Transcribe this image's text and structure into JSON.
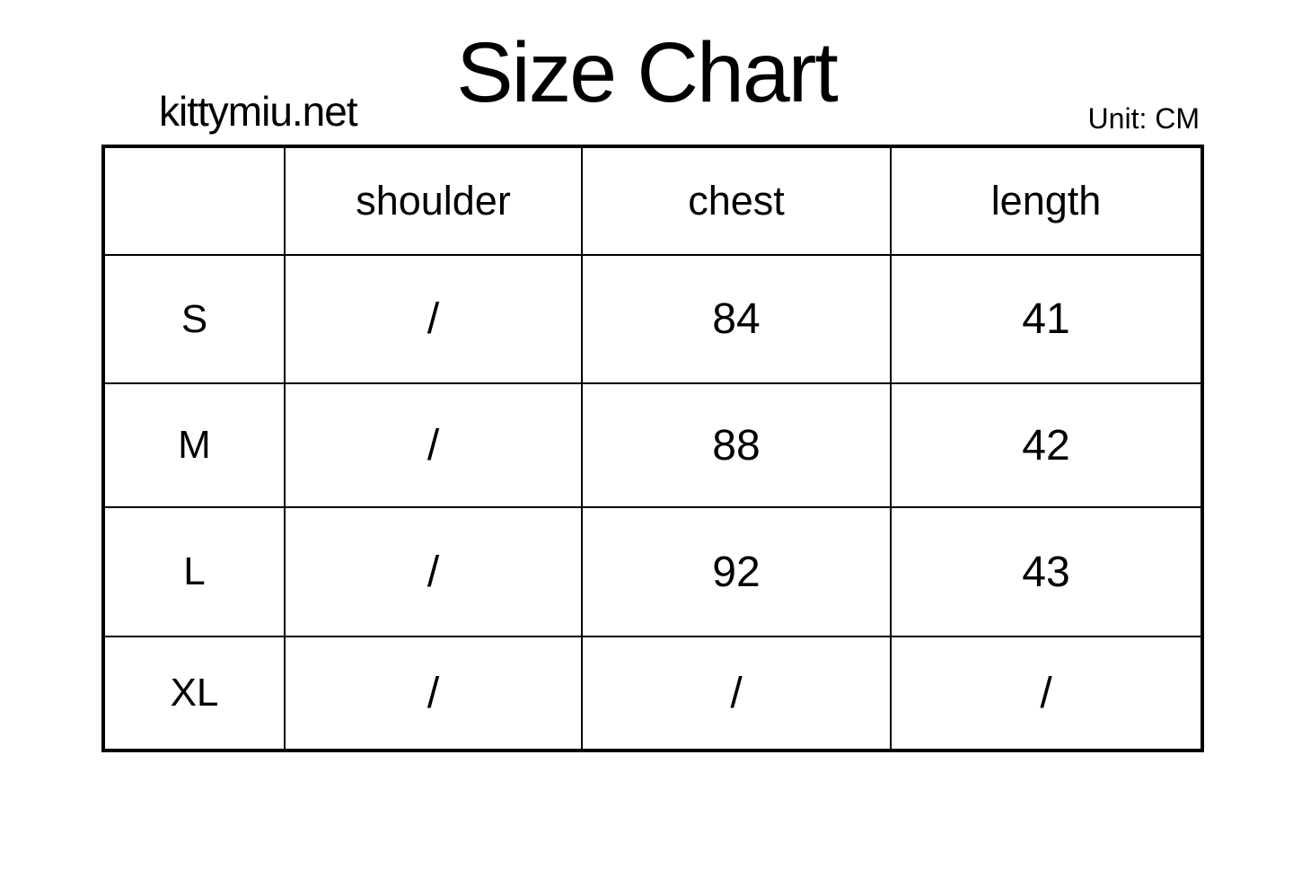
{
  "header": {
    "title": "Size Chart",
    "site": "kittymiu.net",
    "unit": "Unit: CM"
  },
  "colors": {
    "background": "#ffffff",
    "text": "#000000",
    "border": "#000000"
  },
  "chart_data": {
    "type": "table",
    "title": "Size Chart",
    "unit": "CM",
    "columns": [
      "",
      "shoulder",
      "chest",
      "length"
    ],
    "rows": [
      [
        "S",
        "/",
        "84",
        "41"
      ],
      [
        "M",
        "/",
        "88",
        "42"
      ],
      [
        "L",
        "/",
        "92",
        "43"
      ],
      [
        "XL",
        "/",
        "/",
        "/"
      ]
    ]
  }
}
